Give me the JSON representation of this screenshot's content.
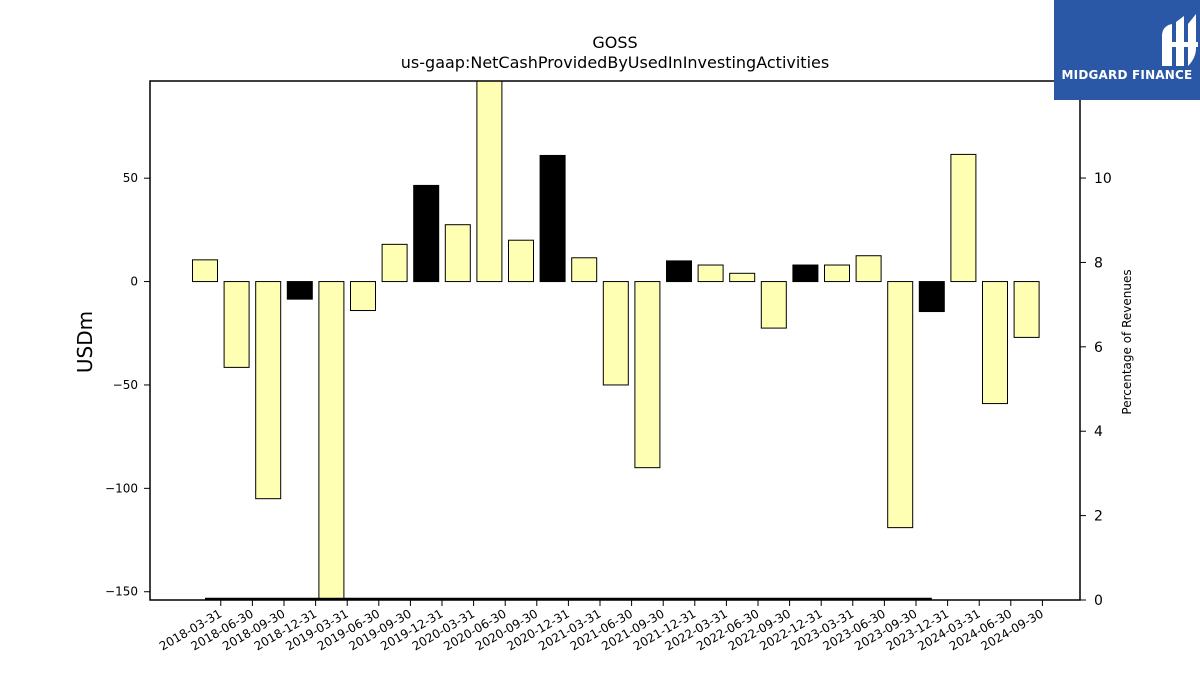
{
  "chart_data": {
    "type": "bar",
    "title": "GOSS",
    "subtitle": "us-gaap:NetCashProvidedByUsedInInvestingActivities",
    "ylabel": "USDm",
    "y2label": "Percentage of Revenues",
    "ylim": [
      -154,
      97
    ],
    "y2lim": [
      0,
      12.3
    ],
    "yticks": [
      -150,
      -100,
      -50,
      0,
      50
    ],
    "y2ticks": [
      0,
      2,
      4,
      6,
      8,
      10
    ],
    "categories": [
      "2018-03-31",
      "2018-06-30",
      "2018-09-30",
      "2018-12-31",
      "2019-03-31",
      "2019-06-30",
      "2019-09-30",
      "2019-12-31",
      "2020-03-31",
      "2020-06-30",
      "2020-09-30",
      "2020-12-31",
      "2021-03-31",
      "2021-06-30",
      "2021-09-30",
      "2021-12-31",
      "2022-03-31",
      "2022-06-30",
      "2022-09-30",
      "2022-12-31",
      "2023-03-31",
      "2023-06-30",
      "2023-09-30",
      "2023-12-31",
      "2024-03-31",
      "2024-06-30",
      "2024-09-30"
    ],
    "values": [
      10.5,
      -41.5,
      -105,
      -8.5,
      -155,
      -14,
      18,
      46.5,
      27.5,
      97,
      20,
      61,
      11.5,
      -50,
      -90,
      10,
      8,
      4,
      -22.5,
      8,
      8,
      12.5,
      -119,
      -14.5,
      61.5,
      -59,
      -27
    ],
    "bar_colors": [
      "#ffffb3",
      "#ffffb3",
      "#ffffb3",
      "#000000",
      "#ffffb3",
      "#ffffb3",
      "#ffffb3",
      "#000000",
      "#ffffb3",
      "#ffffb3",
      "#ffffb3",
      "#000000",
      "#ffffb3",
      "#ffffb3",
      "#ffffb3",
      "#000000",
      "#ffffb3",
      "#ffffb3",
      "#ffffb3",
      "#000000",
      "#ffffb3",
      "#ffffb3",
      "#ffffb3",
      "#000000",
      "#ffffb3",
      "#ffffb3",
      "#ffffb3"
    ],
    "percentage_line": {
      "from": "2018-03-31",
      "to": "2023-12-31",
      "value": 0
    },
    "grid": false
  },
  "logo": {
    "text": "MIDGARD FINANCE",
    "background": "#2b58a6",
    "icon": "midgard-monogram-icon"
  }
}
